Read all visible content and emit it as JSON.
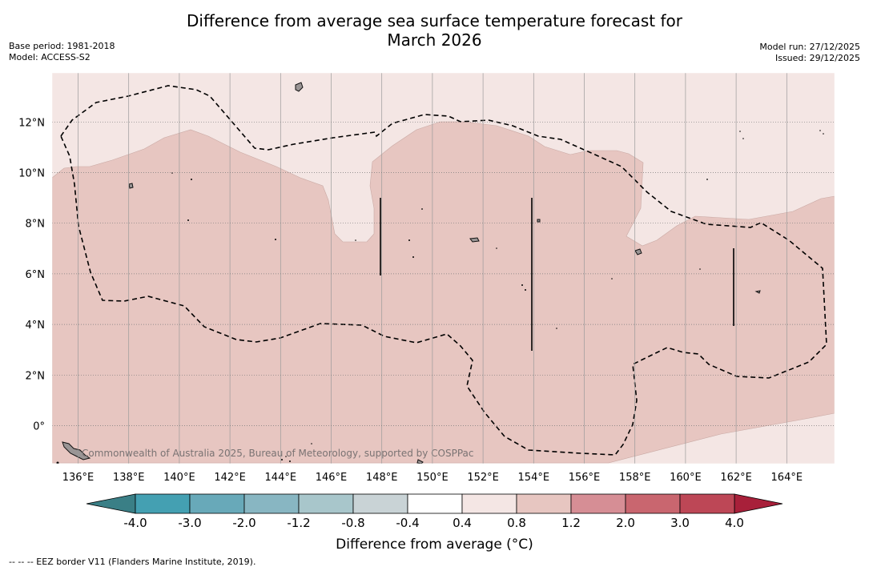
{
  "title": {
    "line1": "Difference from average sea surface temperature forecast for",
    "line2": "March 2026"
  },
  "meta_left": {
    "base_period": "Base period: 1981-2018",
    "model": "Model: ACCESS-S2"
  },
  "meta_right": {
    "model_run": "Model run: 27/12/2025",
    "issued": "Issued: 29/12/2025"
  },
  "map": {
    "lon_labels": [
      "136°E",
      "138°E",
      "140°E",
      "142°E",
      "144°E",
      "146°E",
      "148°E",
      "150°E",
      "152°E",
      "154°E",
      "156°E",
      "158°E",
      "160°E",
      "162°E",
      "164°E"
    ],
    "lat_labels": [
      "12°N",
      "10°N",
      "8°N",
      "6°N",
      "4°N",
      "2°N",
      "0°"
    ],
    "attribution": "Commonwealth of Australia 2025, Bureau of Meteorology, supported by COSPPac",
    "colors": {
      "background_anomaly": "#f4e6e4",
      "warm_anomaly": "#e7c6c1"
    }
  },
  "colorbar": {
    "tick_labels": [
      "-4.0",
      "-3.0",
      "-2.0",
      "-1.2",
      "-0.8",
      "-0.4",
      "0.4",
      "0.8",
      "1.2",
      "2.0",
      "3.0",
      "4.0"
    ],
    "colors": [
      "#44a0b2",
      "#68a9b9",
      "#88b6c2",
      "#a8c6cb",
      "#c9d3d6",
      "#ffffff",
      "#f4e6e4",
      "#e7c6c1",
      "#d68e95",
      "#c9666f",
      "#bd4756"
    ],
    "under_color": "#3a7f86",
    "over_color": "#a8203a",
    "label": "Difference from average (°C)"
  },
  "footer": {
    "note": "--  --  -- EEZ border V11 (Flanders Marine Institute, 2019)."
  }
}
